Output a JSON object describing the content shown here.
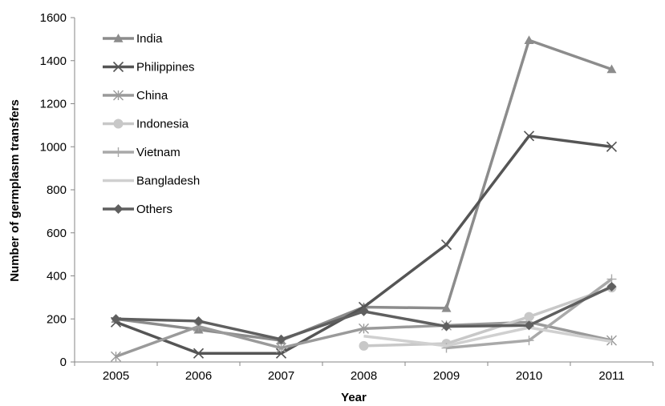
{
  "chart_data": {
    "type": "line",
    "title": "",
    "xlabel": "Year",
    "ylabel": "Number of germplasm transfers",
    "categories": [
      "2005",
      "2006",
      "2007",
      "2008",
      "2009",
      "2010",
      "2011"
    ],
    "ylim": [
      0,
      1600
    ],
    "yticks": [
      "0",
      "200",
      "400",
      "600",
      "800",
      "1000",
      "1200",
      "1400",
      "1600"
    ],
    "grid": false,
    "legend_position": "top-left, inside plot",
    "series": [
      {
        "name": "India",
        "marker": "triangle",
        "color": "#8c8c8c",
        "values": [
          200,
          150,
          100,
          255,
          250,
          1495,
          1360
        ]
      },
      {
        "name": "Philippines",
        "marker": "x",
        "color": "#555555",
        "values": [
          185,
          40,
          40,
          255,
          545,
          1050,
          1000
        ]
      },
      {
        "name": "China",
        "marker": "asterisk",
        "color": "#9a9a9a",
        "values": [
          25,
          165,
          65,
          155,
          170,
          185,
          100
        ]
      },
      {
        "name": "Indonesia",
        "marker": "circle",
        "color": "#c8c8c8",
        "values": [
          null,
          null,
          null,
          75,
          85,
          210,
          345
        ]
      },
      {
        "name": "Vietnam",
        "marker": "plus",
        "color": "#a9a9a9",
        "values": [
          null,
          null,
          null,
          null,
          65,
          100,
          385
        ]
      },
      {
        "name": "Bangladesh",
        "marker": "none",
        "color": "#d0d0d0",
        "values": [
          null,
          null,
          null,
          120,
          75,
          160,
          95
        ]
      },
      {
        "name": "Others",
        "marker": "diamond",
        "color": "#5f5f5f",
        "values": [
          200,
          190,
          105,
          235,
          165,
          170,
          350
        ]
      }
    ]
  }
}
